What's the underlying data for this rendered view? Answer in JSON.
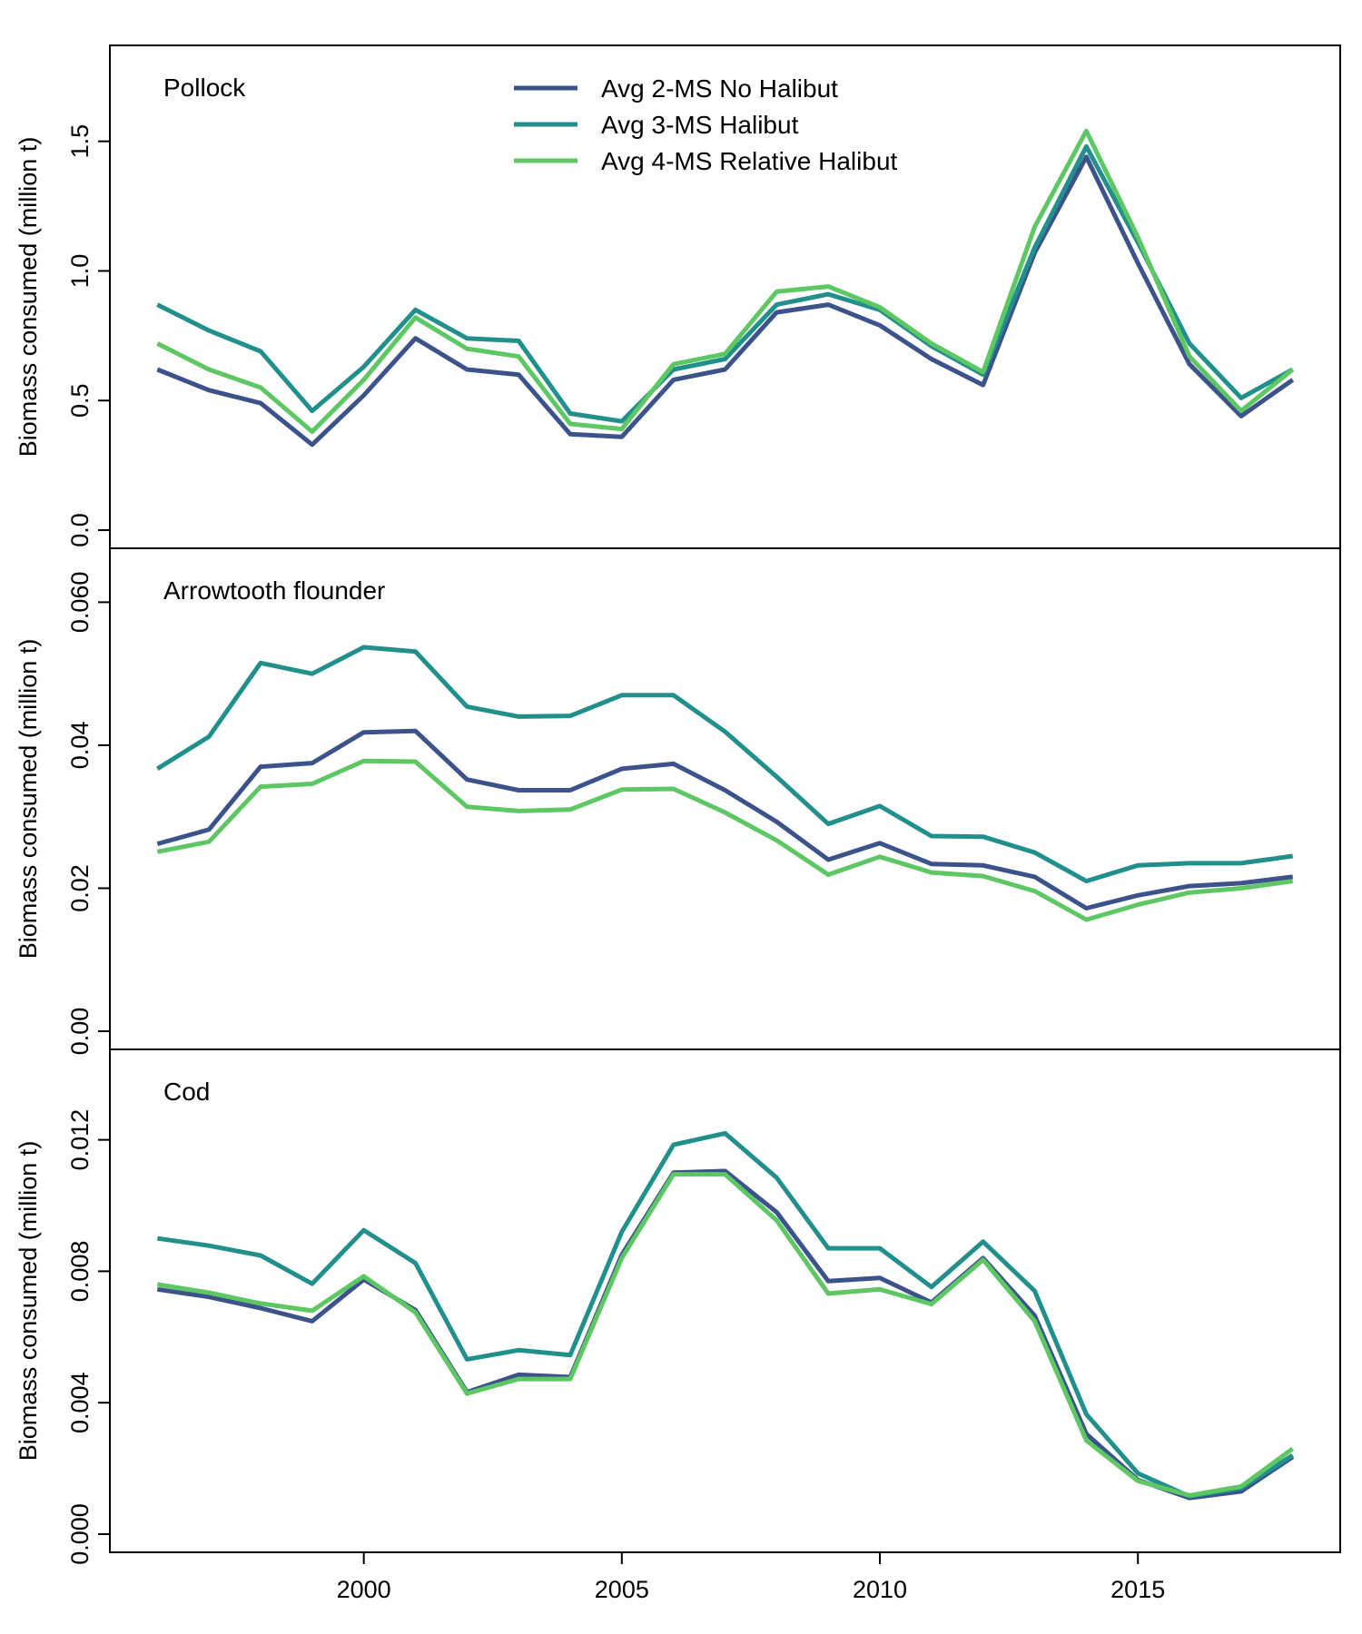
{
  "chart_data": [
    {
      "type": "line",
      "title": "Pollock",
      "ylabel": "Biomass consumed (million t)",
      "ylim": [
        0,
        1.8
      ],
      "yticks": [
        0.0,
        0.5,
        1.0,
        1.5
      ],
      "ytick_labels": [
        "0.0",
        "0.5",
        "1.0",
        "1.5"
      ],
      "x": [
        1996,
        1997,
        1998,
        1999,
        2000,
        2001,
        2002,
        2003,
        2004,
        2005,
        2006,
        2007,
        2008,
        2009,
        2010,
        2011,
        2012,
        2013,
        2014,
        2015,
        2016,
        2017,
        2018
      ],
      "series": [
        {
          "name": "Avg 2-MS No Halibut",
          "color": "#3b528b",
          "values": [
            0.62,
            0.54,
            0.49,
            0.33,
            0.52,
            0.74,
            0.62,
            0.6,
            0.37,
            0.36,
            0.58,
            0.62,
            0.84,
            0.87,
            0.79,
            0.66,
            0.56,
            1.07,
            1.44,
            1.03,
            0.64,
            0.44,
            0.58
          ]
        },
        {
          "name": "Avg 3-MS Halibut",
          "color": "#21908d",
          "values": [
            0.87,
            0.77,
            0.69,
            0.46,
            0.63,
            0.85,
            0.74,
            0.73,
            0.45,
            0.42,
            0.62,
            0.66,
            0.87,
            0.91,
            0.85,
            0.71,
            0.6,
            1.09,
            1.48,
            1.11,
            0.72,
            0.51,
            0.62
          ]
        },
        {
          "name": "Avg 4-MS Relative Halibut",
          "color": "#5dc863",
          "values": [
            0.72,
            0.62,
            0.55,
            0.38,
            0.58,
            0.82,
            0.7,
            0.67,
            0.41,
            0.39,
            0.64,
            0.68,
            0.92,
            0.94,
            0.86,
            0.72,
            0.61,
            1.17,
            1.54,
            1.13,
            0.67,
            0.46,
            0.62
          ]
        }
      ]
    },
    {
      "type": "line",
      "title": "Arrowtooth flounder",
      "ylabel": "Biomass consumed (million t)",
      "ylim": [
        0,
        0.065
      ],
      "yticks": [
        0.0,
        0.02,
        0.04,
        0.06
      ],
      "ytick_labels": [
        "0.00",
        "0.02",
        "0.04",
        "0.060"
      ],
      "x": [
        1996,
        1997,
        1998,
        1999,
        2000,
        2001,
        2002,
        2003,
        2004,
        2005,
        2006,
        2007,
        2008,
        2009,
        2010,
        2011,
        2012,
        2013,
        2014,
        2015,
        2016,
        2017,
        2018
      ],
      "series": [
        {
          "name": "Avg 2-MS No Halibut",
          "color": "#3b528b",
          "values": [
            0.0262,
            0.0282,
            0.037,
            0.0375,
            0.0418,
            0.042,
            0.0352,
            0.0337,
            0.0337,
            0.0367,
            0.0374,
            0.0337,
            0.0293,
            0.024,
            0.0263,
            0.0234,
            0.0232,
            0.0216,
            0.0172,
            0.019,
            0.0203,
            0.0207,
            0.0216
          ]
        },
        {
          "name": "Avg 3-MS Halibut",
          "color": "#21908d",
          "values": [
            0.0367,
            0.0412,
            0.0515,
            0.05,
            0.0537,
            0.0531,
            0.0454,
            0.044,
            0.0441,
            0.047,
            0.047,
            0.0419,
            0.0356,
            0.029,
            0.0315,
            0.0273,
            0.0272,
            0.025,
            0.021,
            0.0232,
            0.0235,
            0.0235,
            0.0245
          ]
        },
        {
          "name": "Avg 4-MS Relative Halibut",
          "color": "#5dc863",
          "values": [
            0.0251,
            0.0265,
            0.0342,
            0.0346,
            0.0378,
            0.0377,
            0.0314,
            0.0308,
            0.031,
            0.0338,
            0.0339,
            0.0306,
            0.0267,
            0.0219,
            0.0244,
            0.0222,
            0.0217,
            0.0196,
            0.0156,
            0.0177,
            0.0194,
            0.02,
            0.021
          ]
        }
      ]
    },
    {
      "type": "line",
      "title": "Cod",
      "xlabel": "",
      "ylabel": "Biomass consumed (million t)",
      "ylim": [
        0,
        0.0142
      ],
      "yticks": [
        0.0,
        0.004,
        0.008,
        0.012
      ],
      "ytick_labels": [
        "0.000",
        "0.004",
        "0.008",
        "0.012"
      ],
      "xticks": [
        2000,
        2005,
        2010,
        2015
      ],
      "xtick_labels": [
        "2000",
        "2005",
        "2010",
        "2015"
      ],
      "x": [
        1996,
        1997,
        1998,
        1999,
        2000,
        2001,
        2002,
        2003,
        2004,
        2005,
        2006,
        2007,
        2008,
        2009,
        2010,
        2011,
        2012,
        2013,
        2014,
        2015,
        2016,
        2017,
        2018
      ],
      "series": [
        {
          "name": "Avg 2-MS No Halibut",
          "color": "#3b528b",
          "values": [
            0.00745,
            0.00722,
            0.00688,
            0.00648,
            0.00775,
            0.00682,
            0.00432,
            0.00485,
            0.00478,
            0.0085,
            0.011,
            0.01105,
            0.0098,
            0.0077,
            0.0078,
            0.00705,
            0.0084,
            0.00665,
            0.00305,
            0.00165,
            0.0011,
            0.0013,
            0.00235
          ]
        },
        {
          "name": "Avg 3-MS Halibut",
          "color": "#21908d",
          "values": [
            0.009,
            0.00878,
            0.00848,
            0.00762,
            0.00925,
            0.00825,
            0.00532,
            0.0056,
            0.00545,
            0.0092,
            0.01185,
            0.0122,
            0.01085,
            0.0087,
            0.0087,
            0.00752,
            0.0089,
            0.0074,
            0.00365,
            0.00185,
            0.00115,
            0.0014,
            0.0024
          ]
        },
        {
          "name": "Avg 4-MS Relative Halibut",
          "color": "#5dc863",
          "values": [
            0.0076,
            0.00735,
            0.00702,
            0.0068,
            0.00785,
            0.00675,
            0.00428,
            0.00472,
            0.00472,
            0.0084,
            0.01095,
            0.01095,
            0.00955,
            0.00732,
            0.00745,
            0.007,
            0.00835,
            0.00648,
            0.00285,
            0.00162,
            0.00118,
            0.00145,
            0.0026
          ]
        }
      ]
    }
  ],
  "legend": {
    "placement": "top-center",
    "entries": [
      {
        "label": "Avg 2-MS No Halibut",
        "color": "#3b528b"
      },
      {
        "label": "Avg 3-MS Halibut",
        "color": "#21908d"
      },
      {
        "label": "Avg 4-MS Relative Halibut",
        "color": "#5dc863"
      }
    ]
  }
}
